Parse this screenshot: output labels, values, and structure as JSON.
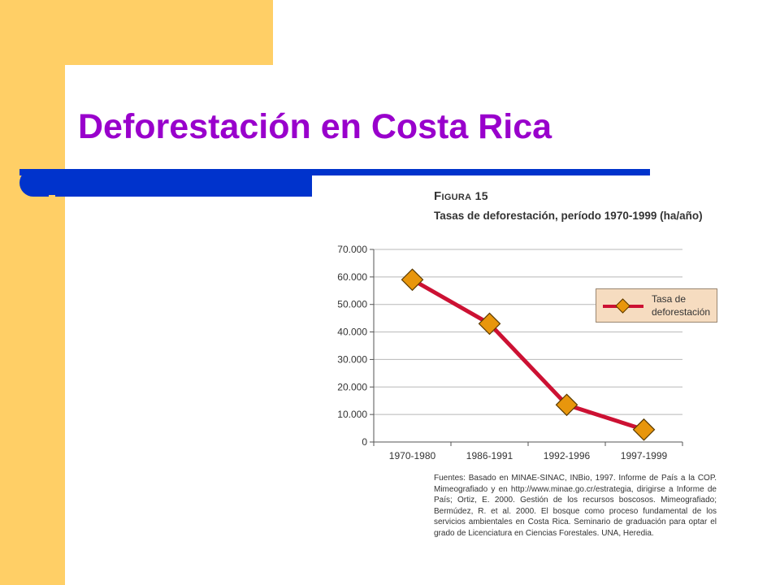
{
  "slide": {
    "title": "Deforestación en Costa Rica",
    "colors": {
      "title": "#9900cc",
      "accent_band": "#ffcf66",
      "rule": "#0033cc"
    }
  },
  "figure": {
    "label": "Figura 15",
    "subtitle": "Tasas de deforestación, período 1970-1999 (ha/año)",
    "source_note": "Fuentes: Basado en MINAE-SINAC, INBio, 1997. Informe de País a la COP. Mimeografiado y en http://www.minae.go.cr/estrategia, dirigirse a Informe de País; Ortiz, E. 2000. Gestión de los recursos boscosos. Mimeografiado; Bermúdez, R. et al. 2000. El bosque como proceso fundamental de los servicios ambientales en Costa Rica. Seminario de graduación para optar el grado de Licenciatura en Ciencias Forestales. UNA, Heredia."
  },
  "chart_data": {
    "type": "line",
    "title": "Tasas de deforestación, período 1970-1999 (ha/año)",
    "categories": [
      "1970-1980",
      "1986-1991",
      "1992-1996",
      "1997-1999"
    ],
    "series": [
      {
        "name": "Tasa de deforestación",
        "values": [
          59000,
          43000,
          13500,
          4500
        ],
        "color": "#cc1133",
        "marker_color": "#e8960c",
        "marker": "diamond"
      }
    ],
    "ylim": [
      0,
      70000
    ],
    "yticks": [
      0,
      10000,
      20000,
      30000,
      40000,
      50000,
      60000,
      70000
    ],
    "ytick_labels": [
      "0",
      "10.000",
      "20.000",
      "30.000",
      "40.000",
      "50.000",
      "60.000",
      "70.000"
    ],
    "xlabel": "",
    "ylabel": "",
    "grid": true,
    "legend": "right"
  }
}
